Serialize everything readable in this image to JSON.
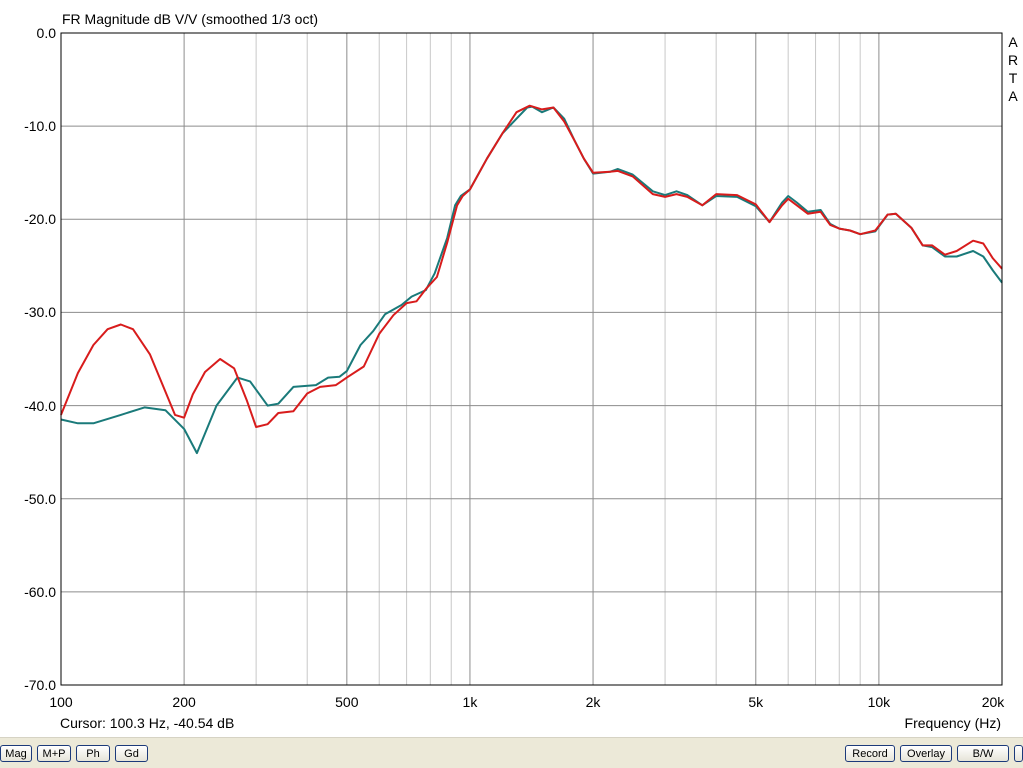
{
  "chart_data": {
    "type": "line",
    "title": "FR Magnitude dB V/V (smoothed 1/3 oct)",
    "xlabel": "Frequency (Hz)",
    "ylabel": "",
    "x_scale": "log",
    "xlim": [
      100,
      20000
    ],
    "ylim": [
      -70,
      0
    ],
    "x_ticks": [
      {
        "value": 100,
        "label": "100"
      },
      {
        "value": 200,
        "label": "200"
      },
      {
        "value": 500,
        "label": "500"
      },
      {
        "value": 1000,
        "label": "1k"
      },
      {
        "value": 2000,
        "label": "2k"
      },
      {
        "value": 5000,
        "label": "5k"
      },
      {
        "value": 10000,
        "label": "10k"
      },
      {
        "value": 20000,
        "label": "20k"
      }
    ],
    "y_ticks": [
      {
        "value": 0,
        "label": "0.0"
      },
      {
        "value": -10,
        "label": "-10.0"
      },
      {
        "value": -20,
        "label": "-20.0"
      },
      {
        "value": -30,
        "label": "-30.0"
      },
      {
        "value": -40,
        "label": "-40.0"
      },
      {
        "value": -50,
        "label": "-50.0"
      },
      {
        "value": -60,
        "label": "-60.0"
      },
      {
        "value": -70,
        "label": "-70.0"
      }
    ],
    "grid": true,
    "series": [
      {
        "color": "#1a7a7a",
        "points": [
          [
            100,
            -41.5
          ],
          [
            110,
            -41.9
          ],
          [
            120,
            -41.9
          ],
          [
            140,
            -41.0
          ],
          [
            160,
            -40.2
          ],
          [
            180,
            -40.5
          ],
          [
            200,
            -42.5
          ],
          [
            215,
            -45.1
          ],
          [
            240,
            -40.0
          ],
          [
            270,
            -37.0
          ],
          [
            290,
            -37.4
          ],
          [
            320,
            -40.0
          ],
          [
            340,
            -39.8
          ],
          [
            370,
            -38.0
          ],
          [
            420,
            -37.8
          ],
          [
            450,
            -37.0
          ],
          [
            480,
            -36.9
          ],
          [
            500,
            -36.3
          ],
          [
            540,
            -33.5
          ],
          [
            580,
            -32.0
          ],
          [
            620,
            -30.2
          ],
          [
            680,
            -29.2
          ],
          [
            720,
            -28.3
          ],
          [
            780,
            -27.6
          ],
          [
            820,
            -25.8
          ],
          [
            880,
            -22.0
          ],
          [
            920,
            -18.5
          ],
          [
            950,
            -17.5
          ],
          [
            1000,
            -16.8
          ],
          [
            1100,
            -13.5
          ],
          [
            1200,
            -10.8
          ],
          [
            1300,
            -9.2
          ],
          [
            1380,
            -8.0
          ],
          [
            1420,
            -7.9
          ],
          [
            1500,
            -8.5
          ],
          [
            1600,
            -8.0
          ],
          [
            1700,
            -9.2
          ],
          [
            1800,
            -11.5
          ],
          [
            1900,
            -13.5
          ],
          [
            2000,
            -15.1
          ],
          [
            2200,
            -14.9
          ],
          [
            2300,
            -14.6
          ],
          [
            2500,
            -15.2
          ],
          [
            2800,
            -17.0
          ],
          [
            3000,
            -17.4
          ],
          [
            3200,
            -17.0
          ],
          [
            3400,
            -17.4
          ],
          [
            3700,
            -18.5
          ],
          [
            4000,
            -17.5
          ],
          [
            4500,
            -17.6
          ],
          [
            5000,
            -18.6
          ],
          [
            5400,
            -20.3
          ],
          [
            5800,
            -18.2
          ],
          [
            6000,
            -17.5
          ],
          [
            6300,
            -18.2
          ],
          [
            6700,
            -19.2
          ],
          [
            7200,
            -19.0
          ],
          [
            7600,
            -20.5
          ],
          [
            8000,
            -21.0
          ],
          [
            8500,
            -21.2
          ],
          [
            9000,
            -21.6
          ],
          [
            9800,
            -21.3
          ],
          [
            10500,
            -19.5
          ],
          [
            11000,
            -19.4
          ],
          [
            12000,
            -20.9
          ],
          [
            12800,
            -22.8
          ],
          [
            13500,
            -23.0
          ],
          [
            14500,
            -24.0
          ],
          [
            15500,
            -24.0
          ],
          [
            17000,
            -23.4
          ],
          [
            18000,
            -24.0
          ],
          [
            19000,
            -25.5
          ],
          [
            20000,
            -26.8
          ]
        ]
      },
      {
        "color": "#d81c1c",
        "points": [
          [
            100,
            -41.0
          ],
          [
            110,
            -36.5
          ],
          [
            120,
            -33.5
          ],
          [
            130,
            -31.8
          ],
          [
            140,
            -31.3
          ],
          [
            150,
            -31.8
          ],
          [
            165,
            -34.5
          ],
          [
            180,
            -38.5
          ],
          [
            190,
            -41.0
          ],
          [
            200,
            -41.3
          ],
          [
            210,
            -38.8
          ],
          [
            225,
            -36.4
          ],
          [
            245,
            -35.0
          ],
          [
            265,
            -36.0
          ],
          [
            285,
            -39.5
          ],
          [
            300,
            -42.3
          ],
          [
            320,
            -42.0
          ],
          [
            340,
            -40.8
          ],
          [
            370,
            -40.6
          ],
          [
            400,
            -38.7
          ],
          [
            430,
            -38.0
          ],
          [
            470,
            -37.8
          ],
          [
            500,
            -37.0
          ],
          [
            550,
            -35.8
          ],
          [
            600,
            -32.3
          ],
          [
            650,
            -30.3
          ],
          [
            700,
            -29.0
          ],
          [
            740,
            -28.8
          ],
          [
            780,
            -27.5
          ],
          [
            830,
            -26.2
          ],
          [
            880,
            -22.5
          ],
          [
            930,
            -18.5
          ],
          [
            960,
            -17.5
          ],
          [
            1000,
            -16.8
          ],
          [
            1100,
            -13.5
          ],
          [
            1200,
            -10.8
          ],
          [
            1300,
            -8.5
          ],
          [
            1400,
            -7.8
          ],
          [
            1500,
            -8.2
          ],
          [
            1600,
            -8.0
          ],
          [
            1700,
            -9.5
          ],
          [
            1800,
            -11.5
          ],
          [
            1900,
            -13.5
          ],
          [
            2000,
            -15.0
          ],
          [
            2200,
            -14.9
          ],
          [
            2300,
            -14.8
          ],
          [
            2500,
            -15.4
          ],
          [
            2800,
            -17.3
          ],
          [
            3000,
            -17.6
          ],
          [
            3200,
            -17.3
          ],
          [
            3400,
            -17.6
          ],
          [
            3700,
            -18.5
          ],
          [
            4000,
            -17.3
          ],
          [
            4500,
            -17.4
          ],
          [
            5000,
            -18.4
          ],
          [
            5400,
            -20.3
          ],
          [
            5800,
            -18.5
          ],
          [
            6000,
            -17.8
          ],
          [
            6300,
            -18.5
          ],
          [
            6700,
            -19.4
          ],
          [
            7200,
            -19.2
          ],
          [
            7600,
            -20.6
          ],
          [
            8000,
            -21.0
          ],
          [
            8500,
            -21.2
          ],
          [
            9000,
            -21.6
          ],
          [
            9800,
            -21.2
          ],
          [
            10500,
            -19.5
          ],
          [
            11000,
            -19.4
          ],
          [
            12000,
            -20.9
          ],
          [
            12800,
            -22.8
          ],
          [
            13500,
            -22.8
          ],
          [
            14500,
            -23.8
          ],
          [
            15500,
            -23.4
          ],
          [
            17000,
            -22.3
          ],
          [
            18000,
            -22.6
          ],
          [
            19000,
            -24.2
          ],
          [
            20000,
            -25.3
          ]
        ]
      }
    ]
  },
  "cursor_readout": "Cursor: 100.3 Hz, -40.54 dB",
  "watermark": [
    "A",
    "R",
    "T",
    "A"
  ],
  "toolbar": {
    "left_buttons": [
      "Mag",
      "M+P",
      "Ph",
      "Gd"
    ],
    "right_buttons": [
      "Record",
      "Overlay",
      "B/W"
    ]
  }
}
